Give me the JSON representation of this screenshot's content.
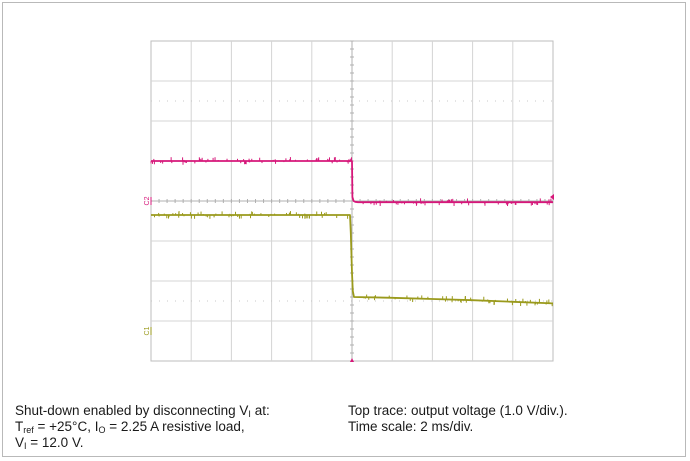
{
  "chart_data": {
    "type": "line",
    "title": "",
    "xlabel": "",
    "ylabel": "",
    "divisions": {
      "x": 10,
      "y": 8
    },
    "trigger_time_div": 5,
    "series": [
      {
        "channel_marker": "C2",
        "color": "#d6177a",
        "x_div": [
          0,
          5.0,
          5.01,
          5.04,
          5.08,
          5.15,
          10
        ],
        "y_div": [
          5.0,
          5.0,
          4.1,
          4.0,
          3.98,
          3.97,
          3.97
        ]
      },
      {
        "channel_marker": "C1",
        "color": "#9a9a1c",
        "x_div": [
          0,
          4.95,
          4.97,
          5.0,
          5.02,
          5.05,
          6.0,
          7.0,
          8.0,
          9.0,
          10
        ],
        "y_div": [
          3.65,
          3.65,
          3.2,
          2.2,
          1.75,
          1.6,
          1.58,
          1.55,
          1.52,
          1.48,
          1.44
        ]
      }
    ]
  },
  "caption": {
    "left": {
      "line1_pre": "Shut-down enabled by disconnecting V",
      "line1_sub": "I",
      "line1_post": " at:",
      "line2_a": "T",
      "line2_a_sub": "ref",
      "line2_b": "  = +25°C, I",
      "line2_b_sub": "O",
      "line2_c": " = 2.25 A resistive load,",
      "line3_a": "V",
      "line3_a_sub": "I",
      "line3_b": "  = 12.0 V."
    },
    "right": {
      "line1": "Top trace: output voltage (1.0 V/div.).",
      "line2": "Time scale: 2 ms/div."
    }
  }
}
